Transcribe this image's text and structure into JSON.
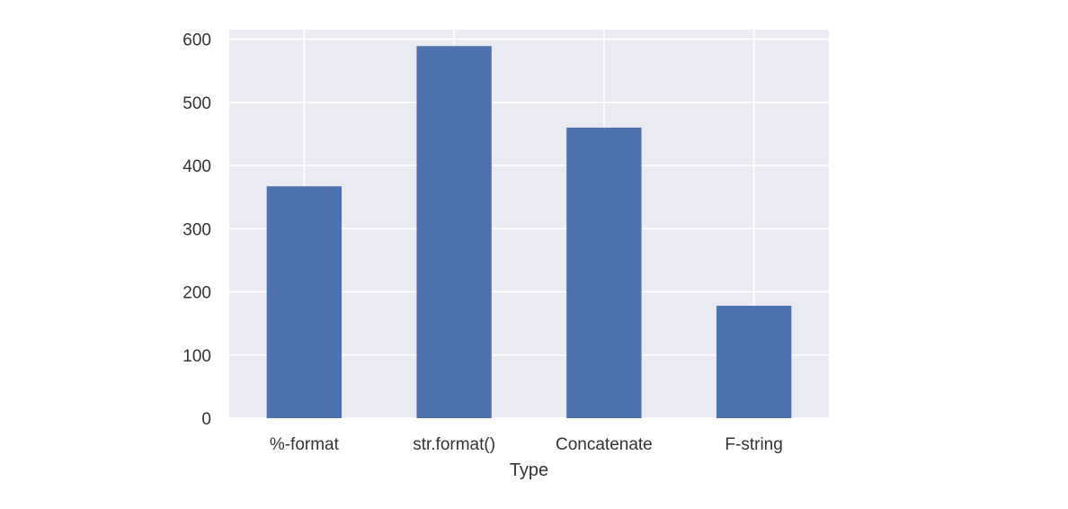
{
  "chart_data": {
    "type": "bar",
    "categories": [
      "%-format",
      "str.format()",
      "Concatenate",
      "F-string"
    ],
    "values": [
      367,
      589,
      460,
      178
    ],
    "title": "",
    "xlabel": "Type",
    "ylabel": "",
    "ylim": [
      0,
      615
    ],
    "yticks": [
      0,
      100,
      200,
      300,
      400,
      500,
      600
    ],
    "grid": true,
    "legend": "none",
    "colors": {
      "bar": "#4c72b0",
      "plot_background": "#eaeaf2",
      "grid": "#ffffff",
      "text": "#333333"
    }
  }
}
